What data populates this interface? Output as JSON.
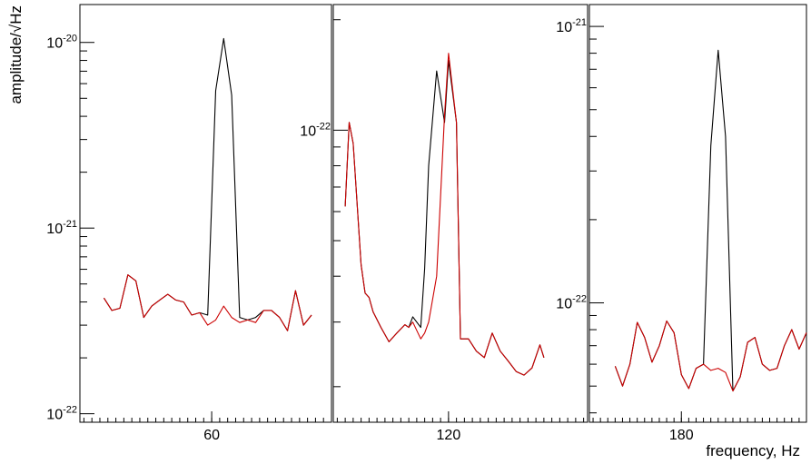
{
  "chart_data": [
    {
      "type": "line",
      "ylabel": "amplitude/√Hz",
      "y_scale": "log",
      "ylim": [
        9e-23,
        1.6e-20
      ],
      "xlim": [
        27,
        90
      ],
      "x_ticks": [
        60
      ],
      "y_ticks": [
        {
          "value": 1e-22,
          "base": "10",
          "exp": "-22"
        },
        {
          "value": 1e-21,
          "base": "10",
          "exp": "-21"
        },
        {
          "value": 1e-20,
          "base": "10",
          "exp": "-20"
        }
      ],
      "x": [
        33,
        35,
        37,
        39,
        41,
        43,
        45,
        47,
        49,
        51,
        53,
        55,
        57,
        59,
        61,
        63,
        65,
        67,
        69,
        71,
        73,
        75,
        77,
        79,
        81,
        83,
        85
      ],
      "series": [
        {
          "color": "#000000",
          "values": [
            4.2e-22,
            3.6e-22,
            3.7e-22,
            5.6e-22,
            5.2e-22,
            3.3e-22,
            3.8e-22,
            4.1e-22,
            4.4e-22,
            4.1e-22,
            4e-22,
            3.4e-22,
            3.5e-22,
            3.4e-22,
            5.5e-21,
            1.05e-20,
            5.2e-21,
            3.3e-22,
            3.2e-22,
            3.3e-22,
            3.6e-22,
            3.6e-22,
            3.3e-22,
            2.8e-22,
            4.6e-22,
            3e-22,
            3.4e-22
          ]
        },
        {
          "color": "#cc0000",
          "values": [
            4.2e-22,
            3.6e-22,
            3.7e-22,
            5.6e-22,
            5.2e-22,
            3.3e-22,
            3.8e-22,
            4.1e-22,
            4.4e-22,
            4.1e-22,
            4e-22,
            3.4e-22,
            3.5e-22,
            3e-22,
            3.2e-22,
            3.8e-22,
            3.3e-22,
            3.1e-22,
            3.2e-22,
            3.1e-22,
            3.6e-22,
            3.6e-22,
            3.3e-22,
            2.8e-22,
            4.6e-22,
            3e-22,
            3.4e-22
          ]
        }
      ]
    },
    {
      "type": "line",
      "y_scale": "log",
      "ylim": [
        1.6e-23,
        2.2e-22
      ],
      "xlim": [
        91,
        155
      ],
      "x_ticks": [
        120
      ],
      "y_ticks": [
        {
          "value": 1e-22,
          "base": "10",
          "exp": "-22"
        }
      ],
      "x": [
        94,
        95,
        96,
        98,
        99,
        100,
        101,
        103,
        105,
        107,
        109,
        110,
        111,
        113,
        114,
        115,
        117,
        119,
        120,
        122,
        123,
        125,
        127,
        129,
        131,
        133,
        135,
        137,
        139,
        141,
        143,
        144
      ],
      "series": [
        {
          "color": "#000000",
          "values": [
            6.2e-23,
            1.05e-22,
            9.2e-23,
            4.3e-23,
            3.6e-23,
            3.5e-23,
            3.2e-23,
            2.9e-23,
            2.65e-23,
            2.8e-23,
            2.95e-23,
            2.9e-23,
            3.1e-23,
            2.9e-23,
            4.2e-23,
            8e-23,
            1.45e-22,
            1.05e-22,
            1.55e-22,
            1.05e-22,
            2.7e-23,
            2.7e-23,
            2.5e-23,
            2.4e-23,
            2.8e-23,
            2.5e-23,
            2.35e-23,
            2.2e-23,
            2.15e-23,
            2.25e-23,
            2.6e-23,
            2.4e-23
          ]
        },
        {
          "color": "#cc0000",
          "values": [
            6.2e-23,
            1.05e-22,
            9.2e-23,
            4.3e-23,
            3.6e-23,
            3.5e-23,
            3.2e-23,
            2.9e-23,
            2.65e-23,
            2.8e-23,
            2.95e-23,
            2.9e-23,
            3e-23,
            2.7e-23,
            2.8e-23,
            3e-23,
            4e-23,
            1.1e-22,
            1.62e-22,
            1.05e-22,
            2.7e-23,
            2.7e-23,
            2.5e-23,
            2.4e-23,
            2.8e-23,
            2.5e-23,
            2.35e-23,
            2.2e-23,
            2.15e-23,
            2.25e-23,
            2.6e-23,
            2.4e-23
          ]
        }
      ]
    },
    {
      "type": "line",
      "y_scale": "log",
      "ylim": [
        3.7e-23,
        1.2e-21
      ],
      "xlim": [
        155,
        214
      ],
      "x_ticks": [
        180
      ],
      "y_ticks": [
        {
          "value": 1e-22,
          "base": "10",
          "exp": "-22"
        },
        {
          "value": 1e-21,
          "base": "10",
          "exp": "-21"
        }
      ],
      "x": [
        162,
        164,
        166,
        168,
        170,
        172,
        174,
        176,
        178,
        180,
        182,
        184,
        186,
        188,
        190,
        192,
        194,
        196,
        198,
        200,
        202,
        204,
        206,
        208,
        210,
        212,
        214
      ],
      "series": [
        {
          "color": "#000000",
          "values": [
            5.9e-23,
            5e-23,
            6e-23,
            8.5e-23,
            7.5e-23,
            6.1e-23,
            7e-23,
            8.6e-23,
            7.8e-23,
            5.5e-23,
            4.9e-23,
            5.8e-23,
            6e-23,
            3.7e-22,
            8.2e-22,
            4e-22,
            4.8e-23,
            5.4e-23,
            7.2e-23,
            7.5e-23,
            6e-23,
            5.7e-23,
            5.8e-23,
            7e-23,
            8e-23,
            6.8e-23,
            7.8e-23
          ]
        },
        {
          "color": "#cc0000",
          "values": [
            5.9e-23,
            5e-23,
            6e-23,
            8.5e-23,
            7.5e-23,
            6.1e-23,
            7e-23,
            8.6e-23,
            7.8e-23,
            5.5e-23,
            4.9e-23,
            5.8e-23,
            6e-23,
            5.7e-23,
            5.8e-23,
            5.6e-23,
            4.8e-23,
            5.4e-23,
            7.2e-23,
            7.5e-23,
            6e-23,
            5.7e-23,
            5.8e-23,
            7e-23,
            8e-23,
            6.8e-23,
            7.8e-23
          ]
        }
      ]
    }
  ],
  "xlabel": "frequency, Hz"
}
